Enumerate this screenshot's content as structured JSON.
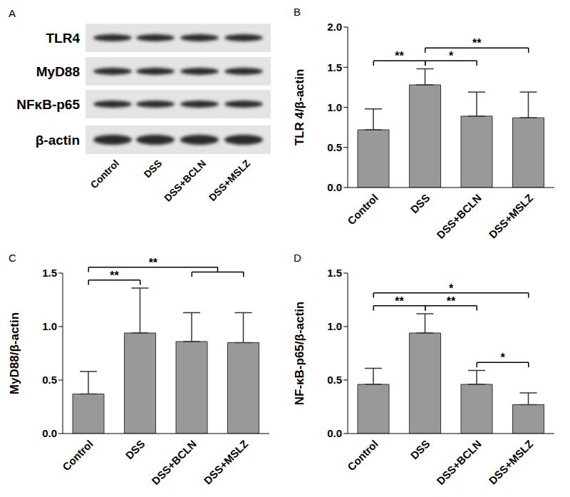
{
  "blot": {
    "title": "A",
    "rows": [
      "TLR4",
      "MyD88",
      "NFκB-p65",
      "β-actin"
    ],
    "lanes": [
      "Control",
      "DSS",
      "DSS+BCLN",
      "DSS+MSLZ"
    ]
  },
  "chart_data": [
    {
      "type": "bar",
      "title": "B",
      "y_label": "TLR 4/β-actin",
      "categories": [
        "Control",
        "DSS",
        "DSS+BCLN",
        "DSS+MSLZ"
      ],
      "values": [
        0.72,
        1.28,
        0.89,
        0.87
      ],
      "errors": [
        0.26,
        0.2,
        0.3,
        0.32
      ],
      "color": "#999999",
      "ylim": [
        0,
        2
      ],
      "yticks": [
        {
          "value": 0,
          "label": "0.0"
        },
        0.5,
        {
          "value": 1,
          "label": "1.0"
        },
        1.5,
        {
          "value": 2,
          "label": "2.0"
        }
      ],
      "annotations": [
        {
          "text": "**",
          "from": [
            "Control"
          ],
          "to": [
            "DSS"
          ]
        },
        {
          "text": "*",
          "from": [
            "DSS"
          ],
          "to": [
            "DSS+BCLN"
          ]
        },
        {
          "text": "**",
          "from": [
            "DSS"
          ],
          "to": [
            "DSS+MSLZ"
          ]
        }
      ]
    },
    {
      "type": "bar",
      "title": "C",
      "y_label": "MyD88/β-actin",
      "categories": [
        "Control",
        "DSS",
        "DSS+BCLN",
        "DSS+MSLZ"
      ],
      "values": [
        0.37,
        0.94,
        0.86,
        0.85
      ],
      "errors": [
        0.21,
        0.42,
        0.27,
        0.28
      ],
      "color": "#999999",
      "ylim": [
        0,
        1.5
      ],
      "yticks": [
        {
          "value": 0,
          "label": "0.0"
        },
        0.5,
        {
          "value": 1,
          "label": "1.0"
        },
        1.5
      ],
      "annotations": [
        {
          "text": "**",
          "from": [
            "Control"
          ],
          "to": [
            "DSS"
          ]
        },
        {
          "text": "**",
          "from": [
            "Control"
          ],
          "to": [
            "DSS+BCLN",
            "DSS+MSLZ"
          ]
        }
      ]
    },
    {
      "type": "bar",
      "title": "D",
      "y_label": "NF-κB-p65/β-actin",
      "categories": [
        "Control",
        "DSS",
        "DSS+BCLN",
        "DSS+MSLZ"
      ],
      "values": [
        0.46,
        0.94,
        0.46,
        0.27
      ],
      "errors": [
        0.15,
        0.18,
        0.13,
        0.11
      ],
      "color": "#999999",
      "ylim": [
        0,
        1.5
      ],
      "yticks": [
        {
          "value": 0,
          "label": "0.0"
        },
        0.5,
        {
          "value": 1,
          "label": "1.0"
        },
        1.5
      ],
      "annotations": [
        {
          "text": "**",
          "from": [
            "Control"
          ],
          "to": [
            "DSS"
          ]
        },
        {
          "text": "**",
          "from": [
            "DSS"
          ],
          "to": [
            "DSS+BCLN"
          ]
        },
        {
          "text": "*",
          "from": [
            "DSS+BCLN"
          ],
          "to": [
            "DSS+MSLZ"
          ]
        },
        {
          "text": "*",
          "from": [
            "Control"
          ],
          "to": [
            "DSS+MSLZ"
          ]
        }
      ]
    }
  ]
}
